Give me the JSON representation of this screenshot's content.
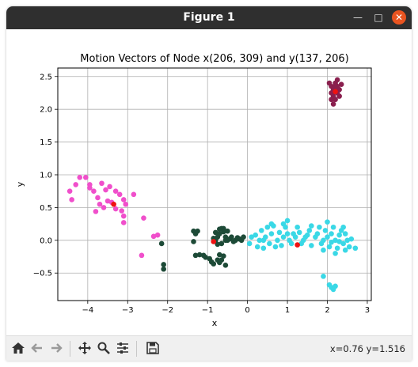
{
  "window": {
    "title": "Figure 1"
  },
  "toolbar": {
    "buttons": [
      "home-icon",
      "back-icon",
      "forward-icon",
      "pan-icon",
      "zoom-icon",
      "configure-subplots-icon",
      "save-icon"
    ],
    "coords": "x=0.76 y=1.516"
  },
  "colors": {
    "pink": "#f04fcb",
    "darkgreen": "#1d4a37",
    "cyan": "#3ad8e6",
    "maroon": "#8a1f4e",
    "red": "#ee1111"
  },
  "chart_data": {
    "type": "scatter",
    "title": "Motion Vectors of Node x(206, 309) and y(137, 206)",
    "xlabel": "x",
    "ylabel": "y",
    "xlim": [
      -4.75,
      3.1
    ],
    "ylim": [
      -0.92,
      2.63
    ],
    "xticks": [
      -4,
      -3,
      -2,
      -1,
      0,
      1,
      2,
      3
    ],
    "xtick_labels": [
      "−4",
      "−3",
      "−2",
      "−1",
      "0",
      "1",
      "2",
      "3"
    ],
    "yticks": [
      -0.5,
      0.0,
      0.5,
      1.0,
      1.5,
      2.0,
      2.5
    ],
    "ytick_labels": [
      "−0.5",
      "0.0",
      "0.5",
      "1.0",
      "1.5",
      "2.0",
      "2.5"
    ],
    "grid": true,
    "series": [
      {
        "color": "#f04fcb",
        "points": [
          [
            -4.4,
            0.62
          ],
          [
            -4.45,
            0.75
          ],
          [
            -4.3,
            0.85
          ],
          [
            -4.2,
            0.96
          ],
          [
            -4.05,
            0.96
          ],
          [
            -3.95,
            0.85
          ],
          [
            -3.85,
            0.75
          ],
          [
            -3.75,
            0.65
          ],
          [
            -3.65,
            0.87
          ],
          [
            -3.55,
            0.77
          ],
          [
            -3.45,
            0.82
          ],
          [
            -3.3,
            0.75
          ],
          [
            -3.2,
            0.7
          ],
          [
            -3.1,
            0.62
          ],
          [
            -3.05,
            0.55
          ],
          [
            -3.15,
            0.45
          ],
          [
            -3.3,
            0.48
          ],
          [
            -3.5,
            0.6
          ],
          [
            -3.7,
            0.55
          ],
          [
            -3.8,
            0.44
          ],
          [
            -3.6,
            0.5
          ],
          [
            -3.1,
            0.37
          ],
          [
            -3.1,
            0.27
          ],
          [
            -2.85,
            0.7
          ],
          [
            -2.6,
            0.34
          ],
          [
            -2.35,
            0.06
          ],
          [
            -2.25,
            0.08
          ],
          [
            -2.65,
            -0.23
          ],
          [
            -3.95,
            0.8
          ],
          [
            -3.4,
            0.58
          ]
        ]
      },
      {
        "color": "#1d4a37",
        "points": [
          [
            -2.1,
            -0.37
          ],
          [
            -2.1,
            -0.44
          ],
          [
            -2.15,
            -0.05
          ],
          [
            -1.35,
            0.14
          ],
          [
            -1.3,
            0.1
          ],
          [
            -1.25,
            0.14
          ],
          [
            -1.35,
            -0.02
          ],
          [
            -1.3,
            -0.23
          ],
          [
            -1.2,
            -0.22
          ],
          [
            -1.1,
            -0.23
          ],
          [
            -1.05,
            -0.26
          ],
          [
            -0.95,
            -0.28
          ],
          [
            -0.9,
            -0.33
          ],
          [
            -0.85,
            -0.36
          ],
          [
            -0.75,
            -0.3
          ],
          [
            -0.7,
            -0.34
          ],
          [
            -0.65,
            -0.3
          ],
          [
            -0.55,
            -0.38
          ],
          [
            -0.6,
            -0.24
          ],
          [
            -0.7,
            -0.22
          ],
          [
            -0.8,
            0.0
          ],
          [
            -0.75,
            0.05
          ],
          [
            -0.7,
            0.1
          ],
          [
            -0.65,
            0.18
          ],
          [
            -0.6,
            0.13
          ],
          [
            -0.55,
            0.05
          ],
          [
            -0.5,
            0.0
          ],
          [
            -0.45,
            0.02
          ],
          [
            -0.4,
            0.05
          ],
          [
            -0.35,
            -0.02
          ],
          [
            -0.3,
            0.0
          ],
          [
            -0.25,
            0.04
          ],
          [
            -0.2,
            0.02
          ],
          [
            -0.15,
            0.0
          ],
          [
            -0.1,
            0.05
          ],
          [
            -0.8,
            0.12
          ],
          [
            -0.65,
            -0.05
          ],
          [
            -0.55,
            0.0
          ],
          [
            -0.85,
            0.03
          ],
          [
            -0.7,
            0.17
          ],
          [
            -0.6,
            0.18
          ],
          [
            -0.5,
            0.14
          ],
          [
            -0.75,
            -0.06
          ]
        ]
      },
      {
        "color": "#3ad8e6",
        "points": [
          [
            0.05,
            -0.05
          ],
          [
            0.1,
            0.05
          ],
          [
            0.2,
            0.08
          ],
          [
            0.25,
            -0.1
          ],
          [
            0.3,
            0.0
          ],
          [
            0.35,
            0.15
          ],
          [
            0.4,
            -0.12
          ],
          [
            0.45,
            0.05
          ],
          [
            0.5,
            0.2
          ],
          [
            0.55,
            -0.05
          ],
          [
            0.6,
            0.1
          ],
          [
            0.65,
            0.22
          ],
          [
            0.7,
            -0.1
          ],
          [
            0.75,
            0.0
          ],
          [
            0.8,
            0.12
          ],
          [
            0.85,
            -0.08
          ],
          [
            0.9,
            0.05
          ],
          [
            0.95,
            0.2
          ],
          [
            1.0,
            0.3
          ],
          [
            1.05,
            0.0
          ],
          [
            1.1,
            -0.05
          ],
          [
            1.15,
            0.1
          ],
          [
            1.2,
            0.05
          ],
          [
            1.3,
            0.12
          ],
          [
            1.35,
            -0.05
          ],
          [
            1.4,
            0.0
          ],
          [
            1.5,
            0.08
          ],
          [
            1.55,
            0.15
          ],
          [
            1.6,
            -0.08
          ],
          [
            1.7,
            0.05
          ],
          [
            1.75,
            0.1
          ],
          [
            1.8,
            0.2
          ],
          [
            1.85,
            -0.05
          ],
          [
            1.9,
            0.0
          ],
          [
            1.95,
            0.15
          ],
          [
            2.0,
            0.28
          ],
          [
            2.0,
            0.05
          ],
          [
            2.05,
            -0.1
          ],
          [
            2.1,
            0.1
          ],
          [
            2.15,
            0.2
          ],
          [
            2.2,
            0.0
          ],
          [
            2.25,
            -0.12
          ],
          [
            2.3,
            0.08
          ],
          [
            2.35,
            0.15
          ],
          [
            2.4,
            -0.05
          ],
          [
            2.45,
            0.1
          ],
          [
            2.5,
            0.0
          ],
          [
            2.55,
            -0.1
          ],
          [
            2.6,
            0.02
          ],
          [
            2.7,
            -0.12
          ],
          [
            1.6,
            0.22
          ],
          [
            1.25,
            0.2
          ],
          [
            0.9,
            0.25
          ],
          [
            0.6,
            0.25
          ],
          [
            2.1,
            -0.03
          ],
          [
            2.3,
            -0.02
          ],
          [
            1.9,
            -0.15
          ],
          [
            2.2,
            -0.2
          ],
          [
            1.9,
            -0.55
          ],
          [
            2.05,
            -0.68
          ],
          [
            2.1,
            -0.72
          ],
          [
            2.15,
            -0.75
          ],
          [
            2.2,
            -0.7
          ],
          [
            2.4,
            0.2
          ],
          [
            2.45,
            -0.15
          ],
          [
            0.4,
            0.0
          ],
          [
            1.0,
            0.1
          ],
          [
            1.45,
            0.05
          ]
        ]
      },
      {
        "color": "#8a1f4e",
        "points": [
          [
            2.05,
            2.4
          ],
          [
            2.1,
            2.35
          ],
          [
            2.15,
            2.3
          ],
          [
            2.2,
            2.4
          ],
          [
            2.25,
            2.35
          ],
          [
            2.3,
            2.3
          ],
          [
            2.35,
            2.38
          ],
          [
            2.15,
            2.2
          ],
          [
            2.2,
            2.15
          ],
          [
            2.25,
            2.25
          ],
          [
            2.15,
            2.08
          ],
          [
            2.1,
            2.15
          ],
          [
            2.2,
            2.3
          ],
          [
            2.25,
            2.45
          ],
          [
            2.3,
            2.2
          ],
          [
            2.1,
            2.25
          ],
          [
            2.2,
            2.35
          ],
          [
            2.15,
            2.28
          ]
        ]
      },
      {
        "color": "#ee1111",
        "points": [
          [
            -3.35,
            0.55
          ],
          [
            -0.85,
            -0.02
          ],
          [
            1.25,
            -0.07
          ],
          [
            2.2,
            2.27
          ]
        ]
      }
    ]
  }
}
